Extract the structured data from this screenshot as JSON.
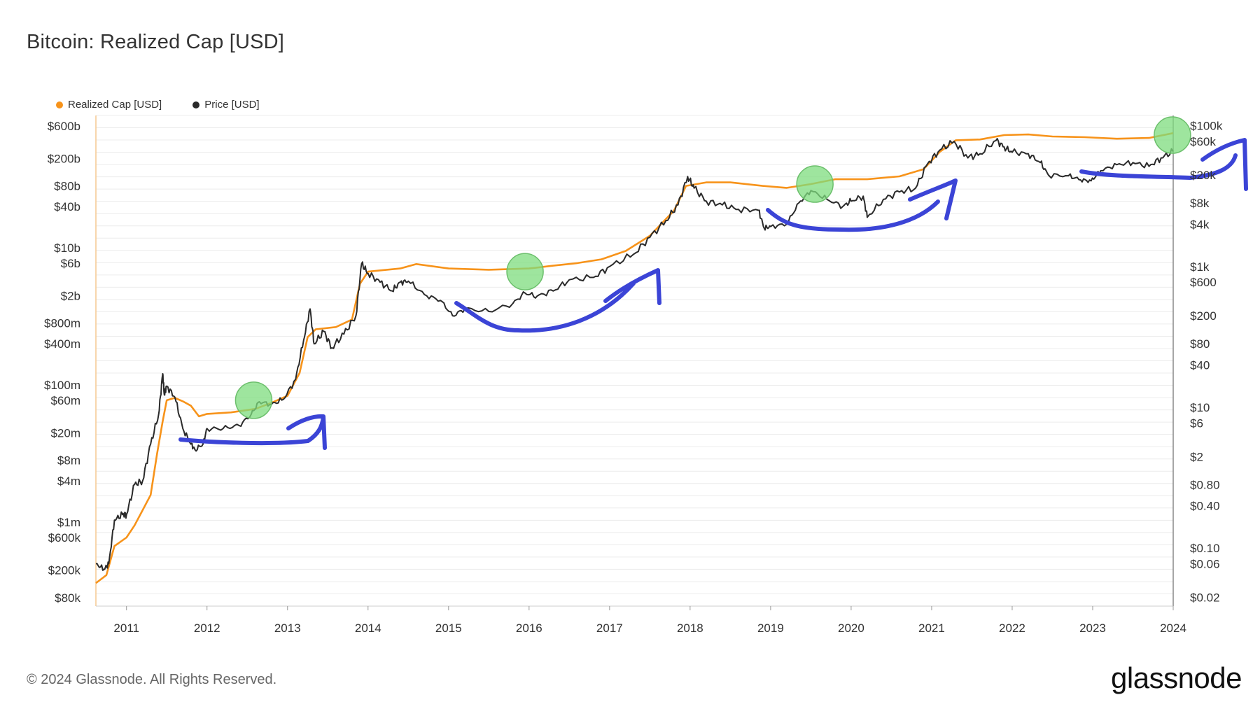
{
  "title": "Bitcoin: Realized Cap [USD]",
  "footer": "© 2024 Glassnode. All Rights Reserved.",
  "brand": "glassnode",
  "colors": {
    "realized_cap": "#f7931a",
    "price": "#2a2a2a",
    "annotation": "#3b44d6",
    "highlight_circle": "#7ddc7e",
    "grid": "#ececec"
  },
  "chart_data": {
    "type": "line",
    "title": "Bitcoin: Realized Cap [USD]",
    "legend": {
      "placement": "top-left"
    },
    "grid": true,
    "x": {
      "ticks": [
        "2011",
        "2012",
        "2013",
        "2014",
        "2015",
        "2016",
        "2017",
        "2018",
        "2019",
        "2020",
        "2021",
        "2022",
        "2023",
        "2024"
      ],
      "range": [
        2010.62,
        2024.0
      ]
    },
    "y_left": {
      "scale": "log",
      "range": [
        60000,
        850000000000
      ],
      "ticks": [
        {
          "label": "$600b",
          "value": 600000000000
        },
        {
          "label": "$200b",
          "value": 200000000000
        },
        {
          "label": "$80b",
          "value": 80000000000
        },
        {
          "label": "$40b",
          "value": 40000000000
        },
        {
          "label": "$10b",
          "value": 10000000000
        },
        {
          "label": "$6b",
          "value": 6000000000
        },
        {
          "label": "$2b",
          "value": 2000000000
        },
        {
          "label": "$800m",
          "value": 800000000
        },
        {
          "label": "$400m",
          "value": 400000000
        },
        {
          "label": "$100m",
          "value": 100000000
        },
        {
          "label": "$60m",
          "value": 60000000
        },
        {
          "label": "$20m",
          "value": 20000000
        },
        {
          "label": "$8m",
          "value": 8000000
        },
        {
          "label": "$4m",
          "value": 4000000
        },
        {
          "label": "$1m",
          "value": 1000000
        },
        {
          "label": "$600k",
          "value": 600000
        },
        {
          "label": "$200k",
          "value": 200000
        },
        {
          "label": "$80k",
          "value": 80000
        }
      ]
    },
    "y_right": {
      "scale": "log",
      "range": [
        0.015,
        140000
      ],
      "ticks": [
        {
          "label": "$100k",
          "value": 100000
        },
        {
          "label": "$60k",
          "value": 60000
        },
        {
          "label": "$20k",
          "value": 20000
        },
        {
          "label": "$8k",
          "value": 8000
        },
        {
          "label": "$4k",
          "value": 4000
        },
        {
          "label": "$1k",
          "value": 1000
        },
        {
          "label": "$600",
          "value": 600
        },
        {
          "label": "$200",
          "value": 200
        },
        {
          "label": "$80",
          "value": 80
        },
        {
          "label": "$40",
          "value": 40
        },
        {
          "label": "$10",
          "value": 10
        },
        {
          "label": "$6",
          "value": 6
        },
        {
          "label": "$2",
          "value": 2
        },
        {
          "label": "$0.80",
          "value": 0.8
        },
        {
          "label": "$0.40",
          "value": 0.4
        },
        {
          "label": "$0.10",
          "value": 0.1
        },
        {
          "label": "$0.06",
          "value": 0.06
        },
        {
          "label": "$0.02",
          "value": 0.02
        }
      ]
    },
    "series": [
      {
        "name": "Realized Cap [USD]",
        "axis": "left",
        "points": [
          [
            2010.62,
            130000
          ],
          [
            2010.75,
            170000
          ],
          [
            2010.85,
            450000
          ],
          [
            2011.0,
            600000
          ],
          [
            2011.1,
            900000
          ],
          [
            2011.2,
            1500000
          ],
          [
            2011.3,
            2500000
          ],
          [
            2011.38,
            10000000
          ],
          [
            2011.45,
            30000000
          ],
          [
            2011.5,
            60000000
          ],
          [
            2011.6,
            65000000
          ],
          [
            2011.7,
            58000000
          ],
          [
            2011.8,
            50000000
          ],
          [
            2011.9,
            35000000
          ],
          [
            2012.0,
            38000000
          ],
          [
            2012.3,
            40000000
          ],
          [
            2012.6,
            45000000
          ],
          [
            2012.8,
            55000000
          ],
          [
            2013.0,
            70000000
          ],
          [
            2013.15,
            150000000
          ],
          [
            2013.25,
            500000000
          ],
          [
            2013.35,
            650000000
          ],
          [
            2013.6,
            700000000
          ],
          [
            2013.8,
            900000000
          ],
          [
            2013.9,
            3000000000
          ],
          [
            2014.0,
            4500000000
          ],
          [
            2014.4,
            5000000000
          ],
          [
            2014.6,
            5800000000
          ],
          [
            2015.0,
            5000000000
          ],
          [
            2015.5,
            4800000000
          ],
          [
            2016.0,
            5000000000
          ],
          [
            2016.3,
            5500000000
          ],
          [
            2016.6,
            6000000000
          ],
          [
            2016.9,
            6800000000
          ],
          [
            2017.2,
            9000000000
          ],
          [
            2017.5,
            15000000000
          ],
          [
            2017.8,
            35000000000
          ],
          [
            2017.95,
            80000000000
          ],
          [
            2018.2,
            90000000000
          ],
          [
            2018.5,
            90000000000
          ],
          [
            2018.9,
            80000000000
          ],
          [
            2019.2,
            75000000000
          ],
          [
            2019.5,
            85000000000
          ],
          [
            2019.8,
            100000000000
          ],
          [
            2020.2,
            100000000000
          ],
          [
            2020.6,
            110000000000
          ],
          [
            2020.9,
            140000000000
          ],
          [
            2021.1,
            250000000000
          ],
          [
            2021.3,
            370000000000
          ],
          [
            2021.6,
            380000000000
          ],
          [
            2021.9,
            440000000000
          ],
          [
            2022.2,
            450000000000
          ],
          [
            2022.5,
            420000000000
          ],
          [
            2022.9,
            410000000000
          ],
          [
            2023.3,
            390000000000
          ],
          [
            2023.7,
            400000000000
          ],
          [
            2024.0,
            470000000000
          ]
        ]
      },
      {
        "name": "Price [USD]",
        "axis": "right",
        "points": [
          [
            2010.62,
            0.06
          ],
          [
            2010.72,
            0.05
          ],
          [
            2010.78,
            0.06
          ],
          [
            2010.85,
            0.25
          ],
          [
            2010.95,
            0.3
          ],
          [
            2011.0,
            0.3
          ],
          [
            2011.1,
            0.8
          ],
          [
            2011.2,
            0.9
          ],
          [
            2011.3,
            3
          ],
          [
            2011.4,
            8
          ],
          [
            2011.45,
            30
          ],
          [
            2011.47,
            15
          ],
          [
            2011.5,
            20
          ],
          [
            2011.6,
            14
          ],
          [
            2011.7,
            5
          ],
          [
            2011.8,
            3
          ],
          [
            2011.85,
            2.5
          ],
          [
            2011.95,
            3
          ],
          [
            2012.0,
            5
          ],
          [
            2012.2,
            5
          ],
          [
            2012.4,
            5.5
          ],
          [
            2012.55,
            8
          ],
          [
            2012.65,
            12
          ],
          [
            2012.8,
            11
          ],
          [
            2012.95,
            13
          ],
          [
            2013.1,
            25
          ],
          [
            2013.2,
            90
          ],
          [
            2013.28,
            250
          ],
          [
            2013.33,
            80
          ],
          [
            2013.45,
            120
          ],
          [
            2013.55,
            70
          ],
          [
            2013.7,
            110
          ],
          [
            2013.85,
            200
          ],
          [
            2013.92,
            1100
          ],
          [
            2014.0,
            800
          ],
          [
            2014.15,
            600
          ],
          [
            2014.3,
            450
          ],
          [
            2014.4,
            600
          ],
          [
            2014.5,
            620
          ],
          [
            2014.7,
            400
          ],
          [
            2014.9,
            330
          ],
          [
            2015.05,
            200
          ],
          [
            2015.2,
            250
          ],
          [
            2015.5,
            230
          ],
          [
            2015.8,
            300
          ],
          [
            2015.95,
            420
          ],
          [
            2016.1,
            380
          ],
          [
            2016.3,
            450
          ],
          [
            2016.5,
            650
          ],
          [
            2016.8,
            700
          ],
          [
            2017.0,
            1000
          ],
          [
            2017.3,
            1500
          ],
          [
            2017.5,
            2600
          ],
          [
            2017.7,
            4500
          ],
          [
            2017.85,
            7500
          ],
          [
            2017.97,
            19000
          ],
          [
            2018.05,
            13000
          ],
          [
            2018.2,
            8500
          ],
          [
            2018.4,
            7500
          ],
          [
            2018.6,
            6500
          ],
          [
            2018.85,
            6300
          ],
          [
            2018.92,
            3500
          ],
          [
            2019.0,
            3700
          ],
          [
            2019.2,
            4000
          ],
          [
            2019.35,
            8000
          ],
          [
            2019.5,
            12000
          ],
          [
            2019.7,
            9000
          ],
          [
            2019.9,
            7200
          ],
          [
            2020.0,
            8500
          ],
          [
            2020.15,
            10000
          ],
          [
            2020.2,
            5000
          ],
          [
            2020.4,
            9000
          ],
          [
            2020.6,
            11500
          ],
          [
            2020.8,
            13000
          ],
          [
            2020.95,
            29000
          ],
          [
            2021.1,
            45000
          ],
          [
            2021.28,
            60000
          ],
          [
            2021.45,
            35000
          ],
          [
            2021.6,
            40000
          ],
          [
            2021.8,
            62000
          ],
          [
            2021.9,
            50000
          ],
          [
            2022.0,
            42000
          ],
          [
            2022.2,
            40000
          ],
          [
            2022.35,
            30000
          ],
          [
            2022.45,
            20000
          ],
          [
            2022.7,
            19500
          ],
          [
            2022.85,
            17000
          ],
          [
            2022.98,
            16500
          ],
          [
            2023.1,
            23000
          ],
          [
            2023.3,
            28000
          ],
          [
            2023.5,
            30000
          ],
          [
            2023.7,
            26500
          ],
          [
            2023.85,
            35000
          ],
          [
            2024.0,
            43000
          ]
        ]
      }
    ]
  }
}
